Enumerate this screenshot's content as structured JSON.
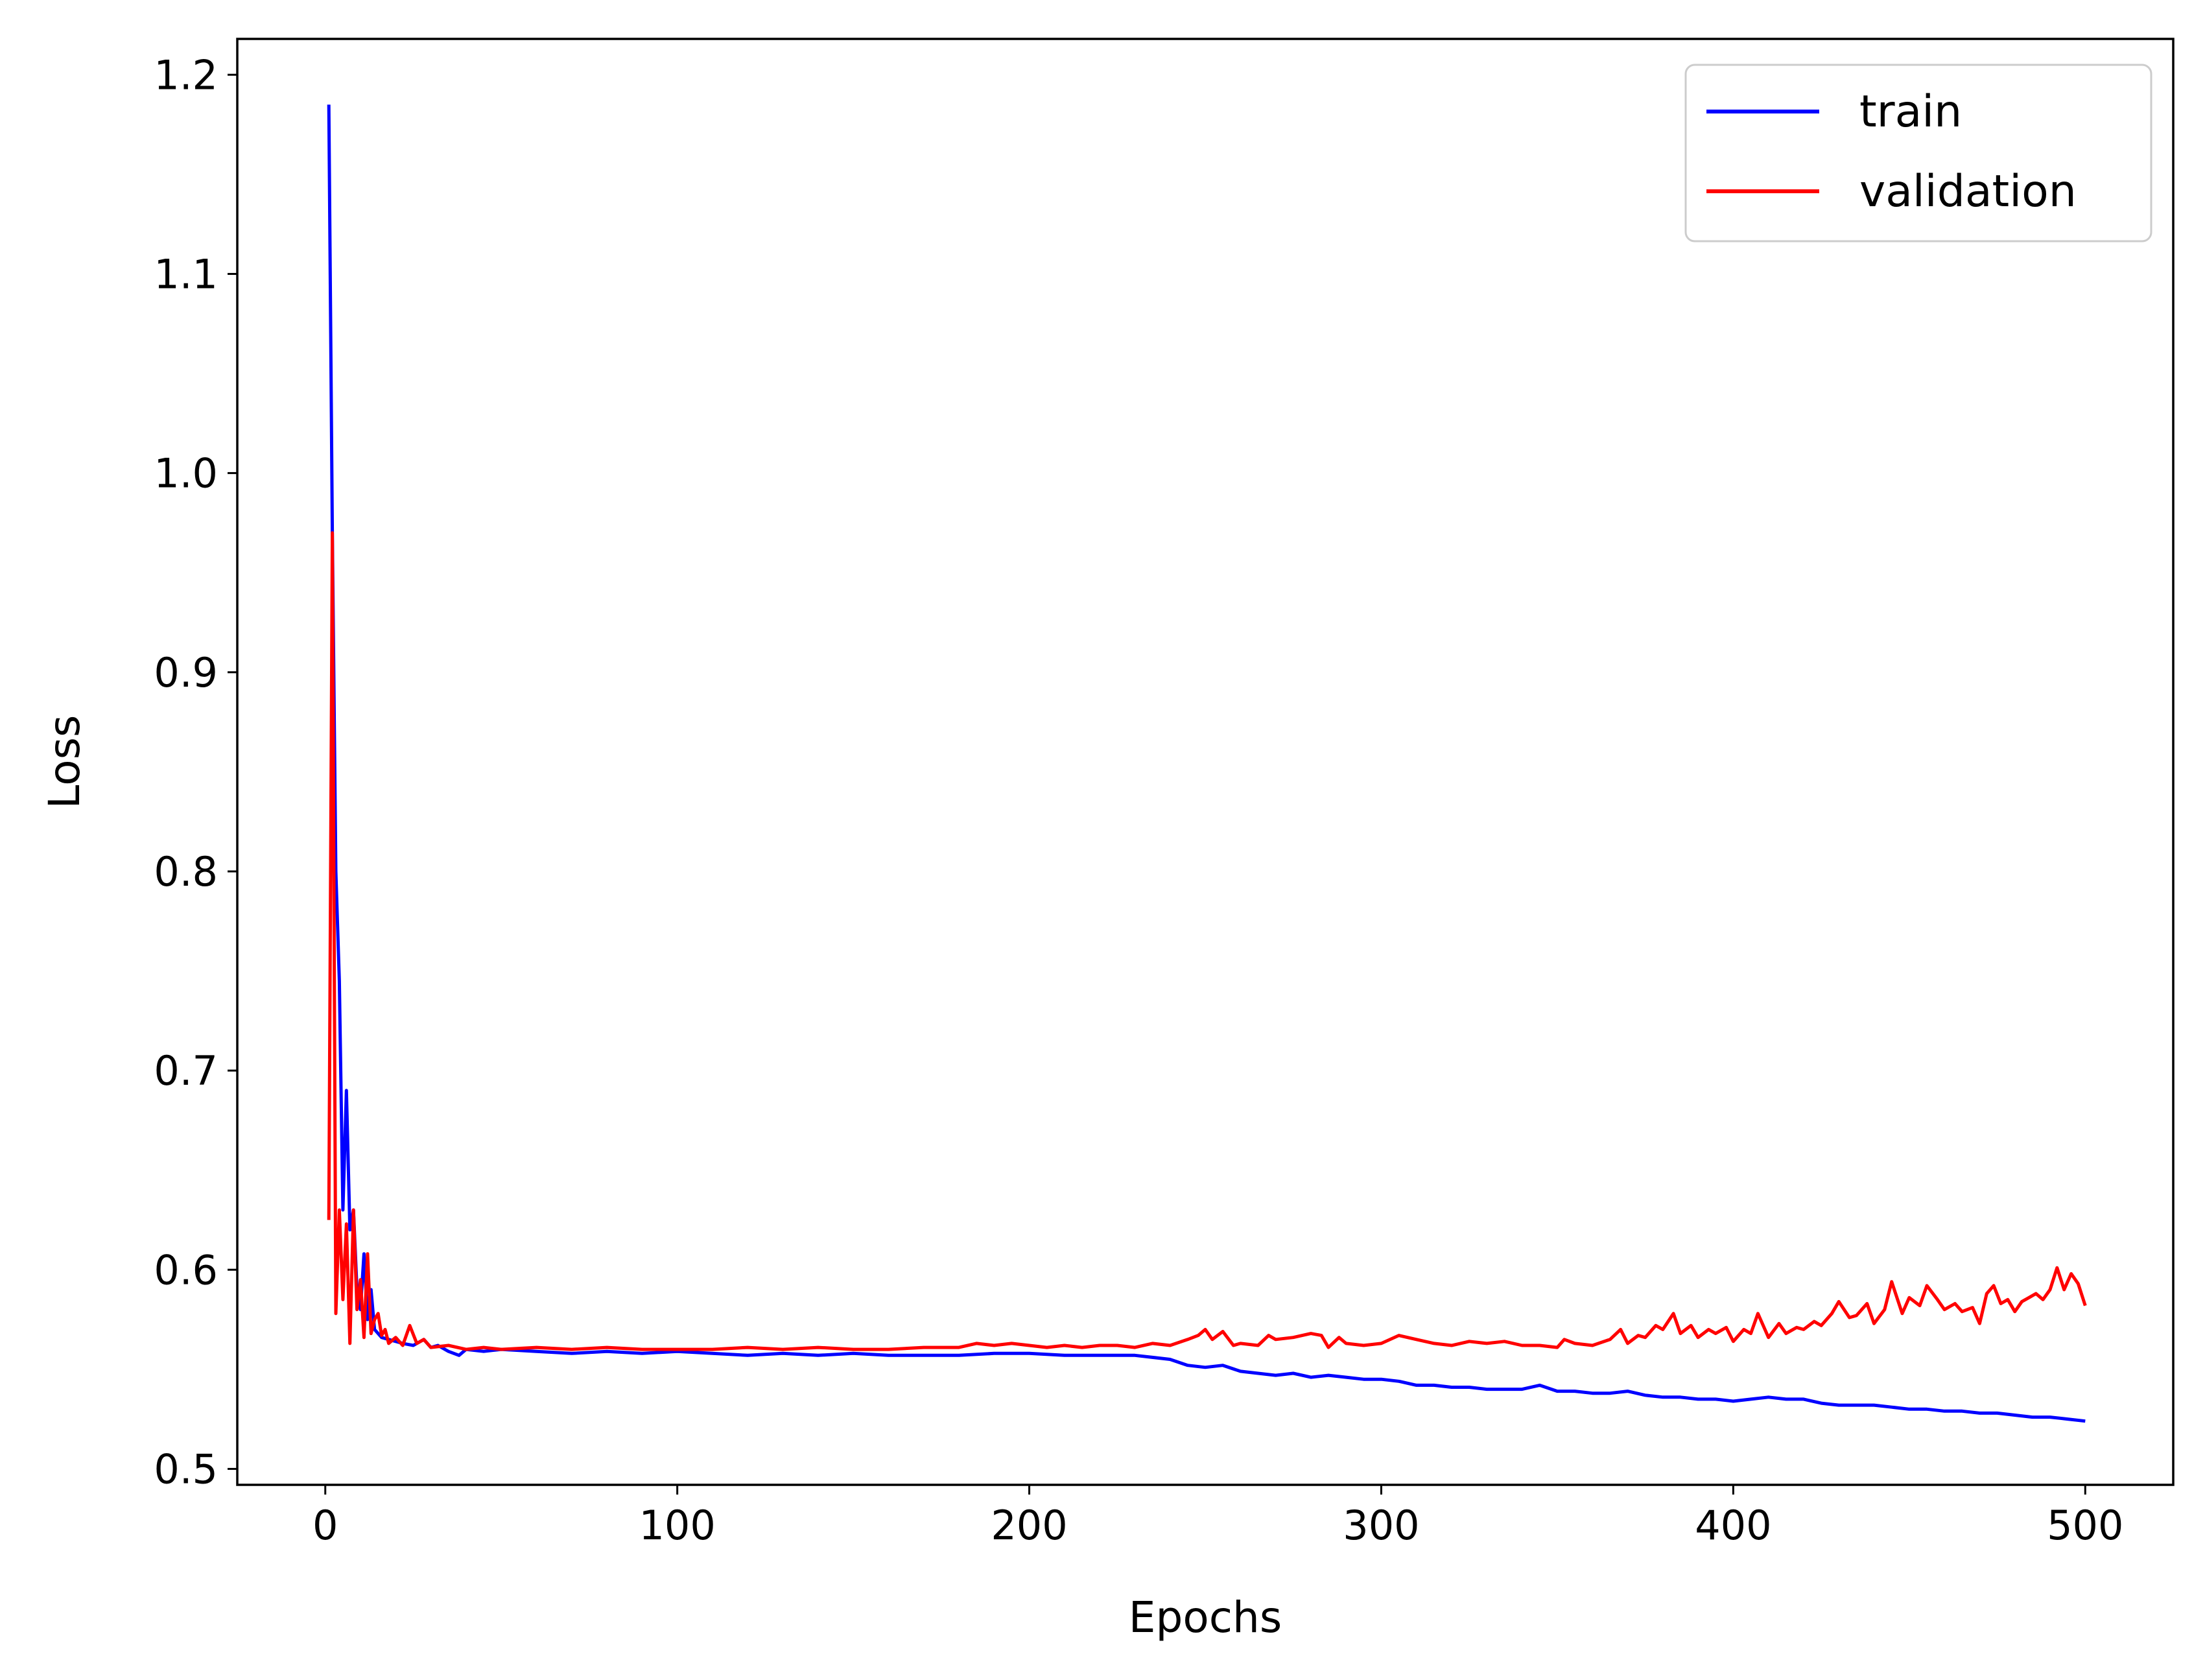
{
  "chart_data": {
    "type": "line",
    "title": "",
    "xlabel": "Epochs",
    "ylabel": "Loss",
    "xlim": [
      -25,
      525
    ],
    "ylim": [
      0.492,
      1.218
    ],
    "xticks": [
      0,
      100,
      200,
      300,
      400,
      500
    ],
    "yticks": [
      0.5,
      0.6,
      0.7,
      0.8,
      0.9,
      1.0,
      1.1,
      1.2
    ],
    "xtick_labels": [
      "0",
      "100",
      "200",
      "300",
      "400",
      "500"
    ],
    "ytick_labels": [
      "0.5",
      "0.6",
      "0.7",
      "0.8",
      "0.9",
      "1.0",
      "1.1",
      "1.2"
    ],
    "grid": false,
    "legend_position": "top-right",
    "series": [
      {
        "name": "train",
        "color": "#0000ff",
        "points": [
          [
            1,
            1.185
          ],
          [
            2,
            0.97
          ],
          [
            3,
            0.8
          ],
          [
            4,
            0.745
          ],
          [
            5,
            0.63
          ],
          [
            6,
            0.69
          ],
          [
            7,
            0.62
          ],
          [
            8,
            0.63
          ],
          [
            9,
            0.59
          ],
          [
            10,
            0.58
          ],
          [
            11,
            0.608
          ],
          [
            12,
            0.575
          ],
          [
            13,
            0.59
          ],
          [
            14,
            0.57
          ],
          [
            15,
            0.568
          ],
          [
            16,
            0.566
          ],
          [
            18,
            0.565
          ],
          [
            20,
            0.564
          ],
          [
            22,
            0.563
          ],
          [
            25,
            0.562
          ],
          [
            28,
            0.565
          ],
          [
            30,
            0.561
          ],
          [
            32,
            0.562
          ],
          [
            35,
            0.559
          ],
          [
            38,
            0.557
          ],
          [
            40,
            0.56
          ],
          [
            45,
            0.559
          ],
          [
            50,
            0.56
          ],
          [
            60,
            0.559
          ],
          [
            70,
            0.558
          ],
          [
            80,
            0.559
          ],
          [
            90,
            0.558
          ],
          [
            100,
            0.559
          ],
          [
            110,
            0.558
          ],
          [
            120,
            0.557
          ],
          [
            130,
            0.558
          ],
          [
            140,
            0.557
          ],
          [
            150,
            0.558
          ],
          [
            160,
            0.557
          ],
          [
            170,
            0.557
          ],
          [
            180,
            0.557
          ],
          [
            190,
            0.558
          ],
          [
            200,
            0.558
          ],
          [
            210,
            0.557
          ],
          [
            220,
            0.557
          ],
          [
            230,
            0.557
          ],
          [
            240,
            0.555
          ],
          [
            245,
            0.552
          ],
          [
            250,
            0.551
          ],
          [
            255,
            0.552
          ],
          [
            260,
            0.549
          ],
          [
            265,
            0.548
          ],
          [
            270,
            0.547
          ],
          [
            275,
            0.548
          ],
          [
            280,
            0.546
          ],
          [
            285,
            0.547
          ],
          [
            290,
            0.546
          ],
          [
            295,
            0.545
          ],
          [
            300,
            0.545
          ],
          [
            305,
            0.544
          ],
          [
            310,
            0.542
          ],
          [
            315,
            0.542
          ],
          [
            320,
            0.541
          ],
          [
            325,
            0.541
          ],
          [
            330,
            0.54
          ],
          [
            335,
            0.54
          ],
          [
            340,
            0.54
          ],
          [
            345,
            0.542
          ],
          [
            350,
            0.539
          ],
          [
            355,
            0.539
          ],
          [
            360,
            0.538
          ],
          [
            365,
            0.538
          ],
          [
            370,
            0.539
          ],
          [
            375,
            0.537
          ],
          [
            380,
            0.536
          ],
          [
            385,
            0.536
          ],
          [
            390,
            0.535
          ],
          [
            395,
            0.535
          ],
          [
            400,
            0.534
          ],
          [
            405,
            0.535
          ],
          [
            410,
            0.536
          ],
          [
            415,
            0.535
          ],
          [
            420,
            0.535
          ],
          [
            425,
            0.533
          ],
          [
            430,
            0.532
          ],
          [
            435,
            0.532
          ],
          [
            440,
            0.532
          ],
          [
            445,
            0.531
          ],
          [
            450,
            0.53
          ],
          [
            455,
            0.53
          ],
          [
            460,
            0.529
          ],
          [
            465,
            0.529
          ],
          [
            470,
            0.528
          ],
          [
            475,
            0.528
          ],
          [
            480,
            0.527
          ],
          [
            485,
            0.526
          ],
          [
            490,
            0.526
          ],
          [
            495,
            0.525
          ],
          [
            500,
            0.524
          ]
        ]
      },
      {
        "name": "validation",
        "color": "#ff0000",
        "points": [
          [
            1,
            0.625
          ],
          [
            2,
            0.97
          ],
          [
            3,
            0.578
          ],
          [
            4,
            0.63
          ],
          [
            5,
            0.585
          ],
          [
            6,
            0.623
          ],
          [
            7,
            0.563
          ],
          [
            8,
            0.63
          ],
          [
            9,
            0.58
          ],
          [
            10,
            0.595
          ],
          [
            11,
            0.566
          ],
          [
            12,
            0.608
          ],
          [
            13,
            0.568
          ],
          [
            14,
            0.575
          ],
          [
            15,
            0.578
          ],
          [
            16,
            0.567
          ],
          [
            17,
            0.57
          ],
          [
            18,
            0.563
          ],
          [
            20,
            0.566
          ],
          [
            22,
            0.562
          ],
          [
            24,
            0.572
          ],
          [
            26,
            0.563
          ],
          [
            28,
            0.565
          ],
          [
            30,
            0.561
          ],
          [
            35,
            0.562
          ],
          [
            40,
            0.56
          ],
          [
            45,
            0.561
          ],
          [
            50,
            0.56
          ],
          [
            60,
            0.561
          ],
          [
            70,
            0.56
          ],
          [
            80,
            0.561
          ],
          [
            90,
            0.56
          ],
          [
            100,
            0.56
          ],
          [
            110,
            0.56
          ],
          [
            120,
            0.561
          ],
          [
            130,
            0.56
          ],
          [
            140,
            0.561
          ],
          [
            150,
            0.56
          ],
          [
            160,
            0.56
          ],
          [
            170,
            0.561
          ],
          [
            180,
            0.561
          ],
          [
            185,
            0.563
          ],
          [
            190,
            0.562
          ],
          [
            195,
            0.563
          ],
          [
            200,
            0.562
          ],
          [
            205,
            0.561
          ],
          [
            210,
            0.562
          ],
          [
            215,
            0.561
          ],
          [
            220,
            0.562
          ],
          [
            225,
            0.562
          ],
          [
            230,
            0.561
          ],
          [
            235,
            0.563
          ],
          [
            240,
            0.562
          ],
          [
            245,
            0.565
          ],
          [
            248,
            0.567
          ],
          [
            250,
            0.57
          ],
          [
            252,
            0.565
          ],
          [
            255,
            0.569
          ],
          [
            258,
            0.562
          ],
          [
            260,
            0.563
          ],
          [
            265,
            0.562
          ],
          [
            268,
            0.567
          ],
          [
            270,
            0.565
          ],
          [
            275,
            0.566
          ],
          [
            280,
            0.568
          ],
          [
            283,
            0.567
          ],
          [
            285,
            0.561
          ],
          [
            288,
            0.566
          ],
          [
            290,
            0.563
          ],
          [
            295,
            0.562
          ],
          [
            300,
            0.563
          ],
          [
            305,
            0.567
          ],
          [
            310,
            0.565
          ],
          [
            315,
            0.563
          ],
          [
            320,
            0.562
          ],
          [
            325,
            0.564
          ],
          [
            330,
            0.563
          ],
          [
            335,
            0.564
          ],
          [
            340,
            0.562
          ],
          [
            345,
            0.562
          ],
          [
            350,
            0.561
          ],
          [
            352,
            0.565
          ],
          [
            355,
            0.563
          ],
          [
            360,
            0.562
          ],
          [
            365,
            0.565
          ],
          [
            368,
            0.57
          ],
          [
            370,
            0.563
          ],
          [
            373,
            0.567
          ],
          [
            375,
            0.566
          ],
          [
            378,
            0.572
          ],
          [
            380,
            0.57
          ],
          [
            383,
            0.578
          ],
          [
            385,
            0.568
          ],
          [
            388,
            0.572
          ],
          [
            390,
            0.566
          ],
          [
            393,
            0.57
          ],
          [
            395,
            0.568
          ],
          [
            398,
            0.571
          ],
          [
            400,
            0.564
          ],
          [
            403,
            0.57
          ],
          [
            405,
            0.568
          ],
          [
            407,
            0.578
          ],
          [
            410,
            0.566
          ],
          [
            413,
            0.573
          ],
          [
            415,
            0.568
          ],
          [
            418,
            0.571
          ],
          [
            420,
            0.57
          ],
          [
            423,
            0.574
          ],
          [
            425,
            0.572
          ],
          [
            428,
            0.578
          ],
          [
            430,
            0.584
          ],
          [
            433,
            0.576
          ],
          [
            435,
            0.577
          ],
          [
            438,
            0.583
          ],
          [
            440,
            0.573
          ],
          [
            443,
            0.58
          ],
          [
            445,
            0.594
          ],
          [
            448,
            0.578
          ],
          [
            450,
            0.586
          ],
          [
            453,
            0.582
          ],
          [
            455,
            0.592
          ],
          [
            458,
            0.585
          ],
          [
            460,
            0.58
          ],
          [
            463,
            0.583
          ],
          [
            465,
            0.579
          ],
          [
            468,
            0.581
          ],
          [
            470,
            0.573
          ],
          [
            472,
            0.588
          ],
          [
            474,
            0.592
          ],
          [
            476,
            0.583
          ],
          [
            478,
            0.585
          ],
          [
            480,
            0.579
          ],
          [
            482,
            0.584
          ],
          [
            484,
            0.586
          ],
          [
            486,
            0.588
          ],
          [
            488,
            0.585
          ],
          [
            490,
            0.59
          ],
          [
            492,
            0.601
          ],
          [
            494,
            0.59
          ],
          [
            496,
            0.598
          ],
          [
            498,
            0.593
          ],
          [
            500,
            0.582
          ]
        ]
      }
    ]
  }
}
